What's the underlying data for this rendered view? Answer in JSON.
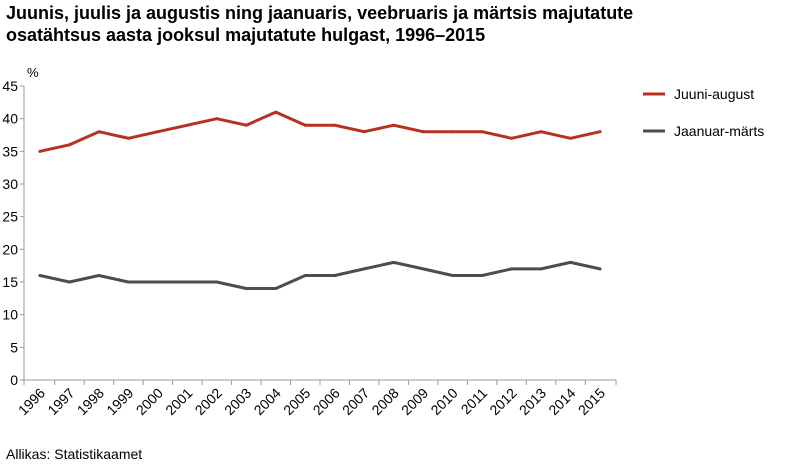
{
  "chart_data": {
    "type": "line",
    "title_lines": [
      "Juunis, juulis ja augustis ning jaanuaris, veebruaris ja märtsis majutatute",
      "osatähtsus aasta jooksul majutatute hulgast, 1996–2015"
    ],
    "ylabel": "%",
    "xlabel": "",
    "ylim": [
      0,
      45
    ],
    "yticks": [
      0,
      5,
      10,
      15,
      20,
      25,
      30,
      35,
      40,
      45
    ],
    "grid": false,
    "legend_position": "right",
    "x": [
      "1996",
      "1997",
      "1998",
      "1999",
      "2000",
      "2001",
      "2002",
      "2003",
      "2004",
      "2005",
      "2006",
      "2007",
      "2008",
      "2009",
      "2010",
      "2011",
      "2012",
      "2013",
      "2014",
      "2015"
    ],
    "series": [
      {
        "name": "Juuni-august",
        "color": "#b8311f",
        "values": [
          35,
          36,
          38,
          37,
          38,
          39,
          40,
          39,
          41,
          39,
          39,
          38,
          39,
          38,
          38,
          38,
          37,
          38,
          37,
          38
        ]
      },
      {
        "name": "Jaanuar-märts",
        "color": "#4d4d4d",
        "values": [
          16,
          15,
          16,
          15,
          15,
          15,
          15,
          14,
          14,
          16,
          16,
          17,
          18,
          17,
          16,
          16,
          17,
          17,
          18,
          17
        ]
      }
    ]
  },
  "source": "Allikas: Statistikaamet",
  "axis_color": "#9a9a9a"
}
